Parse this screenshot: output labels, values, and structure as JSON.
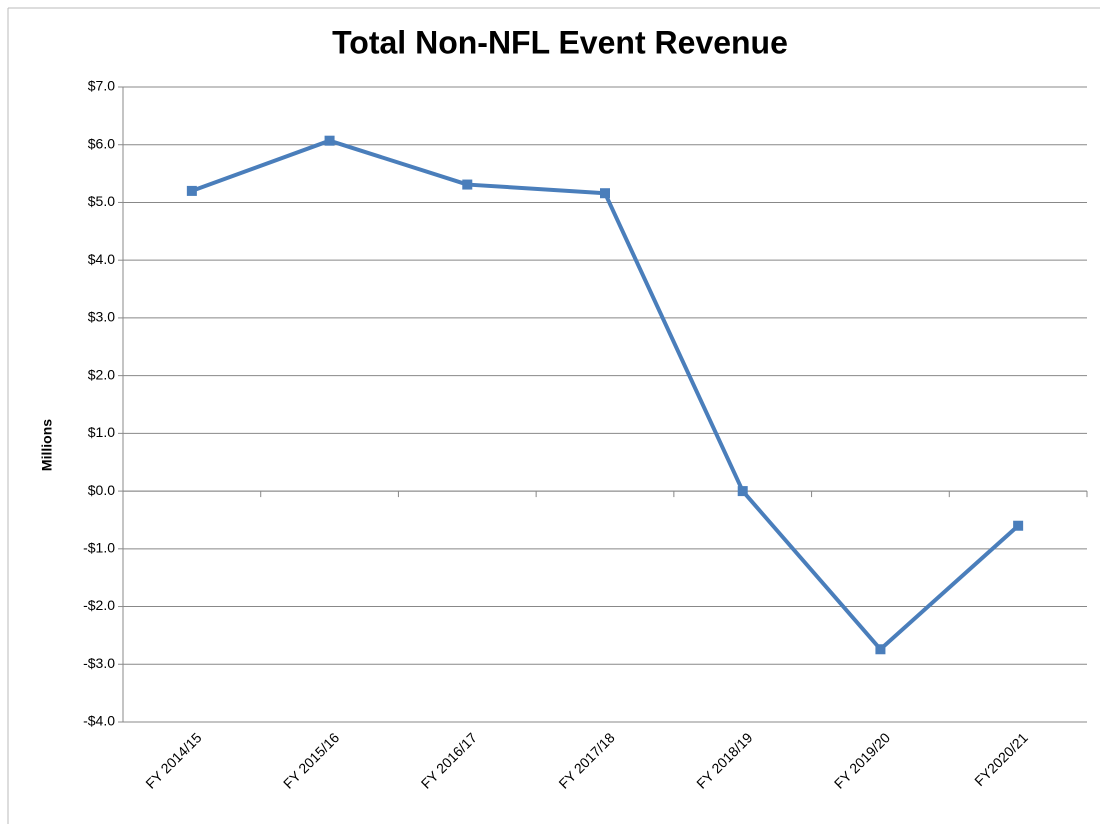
{
  "chart_data": {
    "type": "line",
    "title": "Total Non-NFL Event Revenue",
    "y_label": "Millions",
    "categories": [
      "FY 2014/15",
      "FY 2015/16",
      "FY 2016/17",
      "FY 2017/18",
      "FY 2018/19",
      "FY 2019/20",
      "FY2020/21"
    ],
    "series": [
      {
        "name": "Total Non-NFL Event Revenue",
        "color": "#4a7ebb",
        "values": [
          5.2,
          6.07,
          5.31,
          5.16,
          0.0,
          -2.74,
          -0.6
        ]
      }
    ],
    "ylim": [
      -4,
      7
    ],
    "yticks": [
      {
        "value": -4,
        "label": "-$4.0"
      },
      {
        "value": -3,
        "label": "-$3.0"
      },
      {
        "value": -2,
        "label": "-$2.0"
      },
      {
        "value": -1,
        "label": "-$1.0"
      },
      {
        "value": 0,
        "label": "$0.0"
      },
      {
        "value": 1,
        "label": "$1.0"
      },
      {
        "value": 2,
        "label": "$2.0"
      },
      {
        "value": 3,
        "label": "$3.0"
      },
      {
        "value": 4,
        "label": "$4.0"
      },
      {
        "value": 5,
        "label": "$5.0"
      },
      {
        "value": 6,
        "label": "$6.0"
      },
      {
        "value": 7,
        "label": "$7.0"
      }
    ],
    "grid": true
  }
}
